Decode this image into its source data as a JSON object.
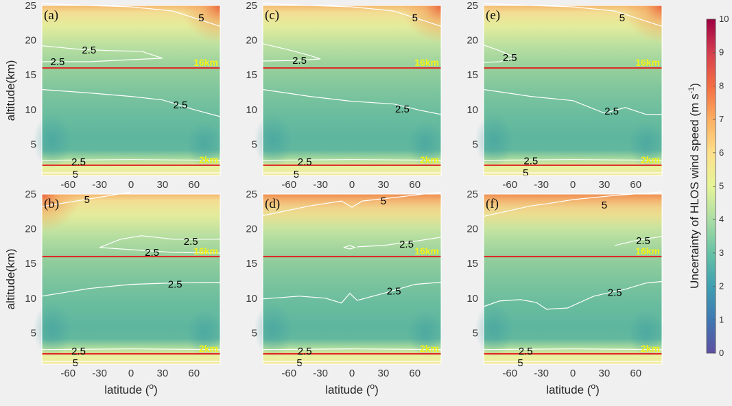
{
  "chart_data": {
    "type": "heatmap",
    "colorbar": {
      "label": "Uncertainty of HLOS wind speed (m s-1)",
      "ticks": [
        0,
        1,
        2,
        3,
        4,
        5,
        6,
        7,
        8,
        9,
        10
      ],
      "range": [
        0,
        10
      ],
      "colormap": "spectral-reversed"
    },
    "x_axis": {
      "label": "latitude (°)",
      "ticks": [
        -60,
        -30,
        0,
        30,
        60
      ],
      "range": [
        -85,
        85
      ]
    },
    "y_axis": {
      "label": "altitude(km)",
      "ticks": [
        5,
        10,
        15,
        20,
        25
      ],
      "range": [
        0.5,
        25
      ]
    },
    "reference_lines": [
      {
        "altitude": 16,
        "label": "16km",
        "color": "#e02020"
      },
      {
        "altitude": 2,
        "label": "2km",
        "color": "#e02020"
      }
    ],
    "panels": [
      {
        "label": "(a)",
        "contours": [
          {
            "level": "5",
            "points": [
              [
                -85,
                25.3
              ],
              [
                -40,
                25
              ],
              [
                0,
                24.8
              ],
              [
                40,
                24.2
              ],
              [
                85,
                22
              ]
            ]
          },
          {
            "level": "2.5",
            "points": [
              [
                -85,
                19.2
              ],
              [
                -50,
                18.7
              ],
              [
                -20,
                18.5
              ],
              [
                10,
                18.4
              ],
              [
                30,
                17.4
              ],
              [
                0,
                17.2
              ],
              [
                -40,
                16.9
              ],
              [
                -85,
                16.9
              ]
            ]
          },
          {
            "level": "2.5",
            "points": [
              [
                -85,
                12.9
              ],
              [
                -40,
                12.4
              ],
              [
                0,
                11.9
              ],
              [
                30,
                11.4
              ],
              [
                60,
                10
              ],
              [
                85,
                9
              ]
            ]
          },
          {
            "level": "2.5",
            "points": [
              [
                -85,
                2.7
              ],
              [
                0,
                2.8
              ],
              [
                85,
                2.7
              ]
            ]
          },
          {
            "level": "5",
            "points": [
              [
                -85,
                0.9
              ],
              [
                0,
                0.9
              ],
              [
                85,
                0.9
              ]
            ]
          }
        ],
        "contour_labels": [
          {
            "text": "5",
            "lat": 67,
            "alt": 23.2
          },
          {
            "text": "2.5",
            "lat": -40,
            "alt": 18.6
          },
          {
            "text": "2.5",
            "lat": -70,
            "alt": 16.9
          },
          {
            "text": "2.5",
            "lat": 47,
            "alt": 10.7
          },
          {
            "text": "2.5",
            "lat": -50,
            "alt": 2.5
          },
          {
            "text": "5",
            "lat": -53,
            "alt": 0.7
          }
        ]
      },
      {
        "label": "(b)",
        "contours": [
          {
            "level": "5",
            "points": [
              [
                -85,
                23.2
              ],
              [
                -40,
                24.3
              ],
              [
                0,
                25.3
              ]
            ]
          },
          {
            "level": "2.5",
            "points": [
              [
                -30,
                17.3
              ],
              [
                -10,
                18.5
              ],
              [
                10,
                19
              ],
              [
                40,
                18.5
              ],
              [
                85,
                18.5
              ]
            ]
          },
          {
            "level": "2.5",
            "points": [
              [
                -30,
                17.3
              ],
              [
                0,
                17
              ],
              [
                40,
                16.6
              ],
              [
                85,
                16.5
              ]
            ]
          },
          {
            "level": "2.5",
            "points": [
              [
                -85,
                10.3
              ],
              [
                -40,
                11.4
              ],
              [
                0,
                12
              ],
              [
                40,
                12.2
              ],
              [
                85,
                12.3
              ]
            ]
          },
          {
            "level": "2.5",
            "points": [
              [
                -85,
                2.6
              ],
              [
                0,
                2.7
              ],
              [
                85,
                2.6
              ]
            ]
          },
          {
            "level": "5",
            "points": [
              [
                -85,
                0.9
              ],
              [
                0,
                0.9
              ],
              [
                85,
                0.9
              ]
            ]
          }
        ],
        "contour_labels": [
          {
            "text": "5",
            "lat": -42,
            "alt": 24.2
          },
          {
            "text": "2.5",
            "lat": 57,
            "alt": 18.2
          },
          {
            "text": "2.5",
            "lat": 20,
            "alt": 16.6
          },
          {
            "text": "2.5",
            "lat": 42,
            "alt": 12
          },
          {
            "text": "2.5",
            "lat": -50,
            "alt": 2.4
          },
          {
            "text": "5",
            "lat": -53,
            "alt": 0.7
          }
        ]
      },
      {
        "label": "(c)",
        "contours": [
          {
            "level": "5",
            "points": [
              [
                -85,
                25.3
              ],
              [
                -40,
                25
              ],
              [
                0,
                24.8
              ],
              [
                40,
                24.2
              ],
              [
                85,
                22
              ]
            ]
          },
          {
            "level": "2.5",
            "points": [
              [
                -85,
                19.5
              ],
              [
                -60,
                18.6
              ],
              [
                -40,
                17.8
              ],
              [
                -30,
                17.3
              ],
              [
                -50,
                17.1
              ],
              [
                -85,
                17
              ]
            ]
          },
          {
            "level": "2.5",
            "points": [
              [
                -85,
                12.9
              ],
              [
                -40,
                11.9
              ],
              [
                0,
                11.2
              ],
              [
                40,
                10.8
              ],
              [
                65,
                9.9
              ],
              [
                85,
                9.3
              ]
            ]
          },
          {
            "level": "2.5",
            "points": [
              [
                -85,
                2.7
              ],
              [
                0,
                2.8
              ],
              [
                85,
                2.7
              ]
            ]
          },
          {
            "level": "5",
            "points": [
              [
                -85,
                0.9
              ],
              [
                0,
                0.9
              ],
              [
                85,
                0.9
              ]
            ]
          }
        ],
        "contour_labels": [
          {
            "text": "5",
            "lat": 60,
            "alt": 23.2
          },
          {
            "text": "2.5",
            "lat": -50,
            "alt": 17.1
          },
          {
            "text": "2.5",
            "lat": 48,
            "alt": 10.1
          },
          {
            "text": "2.5",
            "lat": -45,
            "alt": 2.5
          },
          {
            "text": "5",
            "lat": -53,
            "alt": 0.7
          }
        ]
      },
      {
        "label": "(d)",
        "contours": [
          {
            "level": "5",
            "points": [
              [
                -85,
                21.9
              ],
              [
                -40,
                23.3
              ],
              [
                -10,
                24
              ],
              [
                0,
                23.1
              ],
              [
                10,
                24
              ],
              [
                40,
                24.5
              ],
              [
                85,
                25.3
              ]
            ]
          },
          {
            "level": "2.5",
            "points": [
              [
                -8,
                17.3
              ],
              [
                -2,
                17.6
              ],
              [
                3,
                17.3
              ],
              [
                -2,
                17.1
              ],
              [
                -8,
                17.3
              ]
            ]
          },
          {
            "level": "2.5",
            "points": [
              [
                5,
                17.4
              ],
              [
                30,
                17.6
              ],
              [
                60,
                18.2
              ],
              [
                85,
                18.8
              ]
            ]
          },
          {
            "level": "2.5",
            "points": [
              [
                -85,
                9.9
              ],
              [
                -50,
                10.3
              ],
              [
                -25,
                10
              ],
              [
                -10,
                9.3
              ],
              [
                -2,
                10.7
              ],
              [
                5,
                9.7
              ],
              [
                30,
                10.7
              ],
              [
                60,
                12
              ],
              [
                85,
                12.3
              ]
            ]
          },
          {
            "level": "2.5",
            "points": [
              [
                -85,
                2.6
              ],
              [
                0,
                2.7
              ],
              [
                85,
                2.6
              ]
            ]
          },
          {
            "level": "5",
            "points": [
              [
                -85,
                0.9
              ],
              [
                0,
                0.9
              ],
              [
                85,
                0.9
              ]
            ]
          }
        ],
        "contour_labels": [
          {
            "text": "5",
            "lat": 30,
            "alt": 24
          },
          {
            "text": "2.5",
            "lat": 52,
            "alt": 17.8
          },
          {
            "text": "2.5",
            "lat": 40,
            "alt": 11
          },
          {
            "text": "2.5",
            "lat": -45,
            "alt": 2.4
          },
          {
            "text": "5",
            "lat": -50,
            "alt": 0.7
          }
        ]
      },
      {
        "label": "(e)",
        "contours": [
          {
            "level": "5",
            "points": [
              [
                -85,
                25.3
              ],
              [
                -40,
                25
              ],
              [
                0,
                24.8
              ],
              [
                40,
                24.2
              ],
              [
                85,
                22
              ]
            ]
          },
          {
            "level": "2.5",
            "points": [
              [
                -85,
                19.3
              ],
              [
                -70,
                18.5
              ],
              [
                -55,
                17.5
              ],
              [
                -70,
                16.9
              ],
              [
                -85,
                16.8
              ]
            ]
          },
          {
            "level": "2.5",
            "points": [
              [
                -85,
                12.9
              ],
              [
                -40,
                11.9
              ],
              [
                0,
                11.3
              ],
              [
                30,
                9.5
              ],
              [
                50,
                10.3
              ],
              [
                70,
                9.3
              ],
              [
                85,
                9.3
              ]
            ]
          },
          {
            "level": "2.5",
            "points": [
              [
                -85,
                2.7
              ],
              [
                0,
                2.8
              ],
              [
                85,
                2.7
              ]
            ]
          },
          {
            "level": "5",
            "points": [
              [
                -85,
                0.9
              ],
              [
                0,
                0.9
              ],
              [
                85,
                0.9
              ]
            ]
          }
        ],
        "contour_labels": [
          {
            "text": "5",
            "lat": 47,
            "alt": 23.2
          },
          {
            "text": "2.5",
            "lat": -60,
            "alt": 17.5
          },
          {
            "text": "2.5",
            "lat": 37,
            "alt": 9.8
          },
          {
            "text": "2.5",
            "lat": -40,
            "alt": 2.6
          },
          {
            "text": "5",
            "lat": -45,
            "alt": 0.9
          }
        ]
      },
      {
        "label": "(f)",
        "contours": [
          {
            "level": "5",
            "points": [
              [
                -85,
                21.8
              ],
              [
                -40,
                23.3
              ],
              [
                -25,
                23.6
              ],
              [
                0,
                24.2
              ],
              [
                40,
                24.8
              ],
              [
                85,
                25.3
              ]
            ]
          },
          {
            "level": "2.5",
            "points": [
              [
                40,
                17.6
              ],
              [
                60,
                18.3
              ],
              [
                85,
                18.9
              ]
            ]
          },
          {
            "level": "2.5",
            "points": [
              [
                -85,
                8.8
              ],
              [
                -70,
                9.6
              ],
              [
                -50,
                9.8
              ],
              [
                -35,
                9.4
              ],
              [
                -25,
                8.4
              ],
              [
                -5,
                8.6
              ],
              [
                20,
                10.3
              ],
              [
                50,
                11.3
              ],
              [
                70,
                12.2
              ],
              [
                85,
                12.4
              ]
            ]
          },
          {
            "level": "2.5",
            "points": [
              [
                -85,
                2.6
              ],
              [
                0,
                2.7
              ],
              [
                85,
                2.6
              ]
            ]
          },
          {
            "level": "5",
            "points": [
              [
                -85,
                0.9
              ],
              [
                0,
                0.9
              ],
              [
                85,
                0.9
              ]
            ]
          }
        ],
        "contour_labels": [
          {
            "text": "5",
            "lat": 30,
            "alt": 23.4
          },
          {
            "text": "2.5",
            "lat": 67,
            "alt": 18.3
          },
          {
            "text": "2.5",
            "lat": 40,
            "alt": 10.8
          },
          {
            "text": "2.5",
            "lat": -45,
            "alt": 2.4
          },
          {
            "text": "5",
            "lat": -50,
            "alt": 0.7
          }
        ]
      }
    ]
  }
}
